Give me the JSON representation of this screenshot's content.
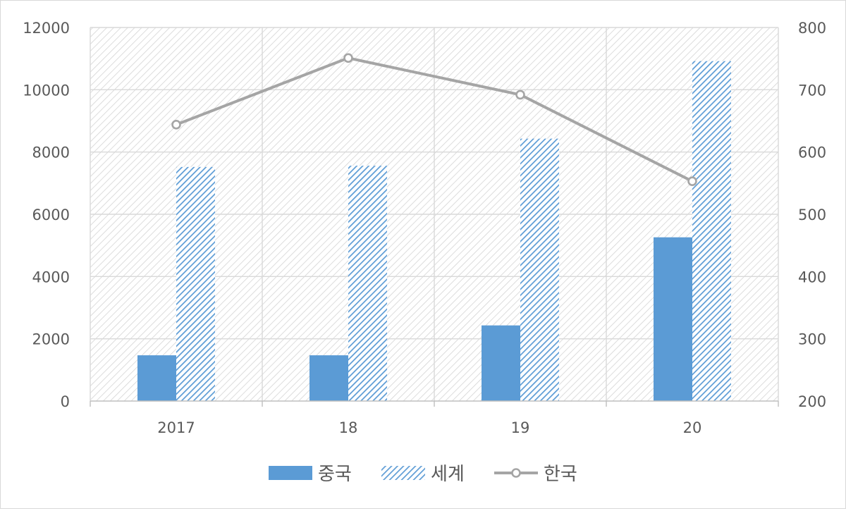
{
  "chart_data": {
    "type": "bar",
    "categories": [
      "2017",
      "18",
      "19",
      "20"
    ],
    "series": [
      {
        "name": "중국",
        "type": "bar",
        "axis": "left",
        "color": "#5b9bd5",
        "fill": "solid",
        "values": [
          1470,
          1470,
          2430,
          5260
        ]
      },
      {
        "name": "세계",
        "type": "bar",
        "axis": "left",
        "color": "#5b9bd5",
        "fill": "diagonal-hatch",
        "values": [
          7520,
          7560,
          8430,
          10920
        ]
      },
      {
        "name": "한국",
        "type": "line",
        "axis": "right",
        "color": "#a5a5a5",
        "marker": "circle",
        "values": [
          644,
          751,
          692,
          553
        ]
      }
    ],
    "y_left": {
      "min": 0,
      "max": 12000,
      "ticks": [
        "0",
        "2000",
        "4000",
        "6000",
        "8000",
        "10000",
        "12000"
      ]
    },
    "y_right": {
      "min": 200,
      "max": 800,
      "ticks": [
        "200",
        "300",
        "400",
        "500",
        "600",
        "700",
        "800"
      ]
    },
    "grid": true,
    "plot_background": "diagonal-hatch",
    "legend_position": "bottom"
  }
}
